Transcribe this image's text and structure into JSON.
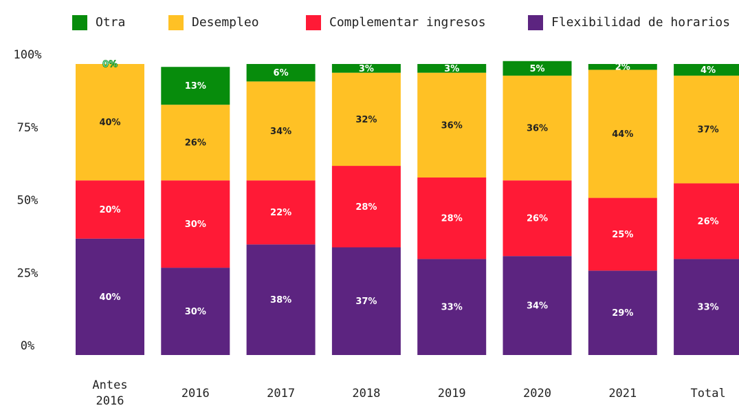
{
  "chart_data": {
    "type": "stacked_bar",
    "categories": [
      "Antes 2016",
      "2016",
      "2017",
      "2018",
      "2019",
      "2020",
      "2021",
      "Total"
    ],
    "series": [
      {
        "name": "Flexibilidad de horarios",
        "color": "#5c2480",
        "values": [
          40,
          30,
          38,
          37,
          33,
          34,
          29,
          33
        ],
        "value_labels": [
          "40%",
          "30%",
          "38%",
          "37%",
          "33%",
          "34%",
          "29%",
          "33%"
        ]
      },
      {
        "name": "Complementar ingresos",
        "color": "#ff1a36",
        "values": [
          20,
          30,
          22,
          28,
          28,
          26,
          25,
          26
        ],
        "value_labels": [
          "20%",
          "30%",
          "22%",
          "28%",
          "28%",
          "26%",
          "25%",
          "26%"
        ]
      },
      {
        "name": "Desempleo",
        "color": "#ffc125",
        "values": [
          40,
          26,
          34,
          32,
          36,
          36,
          44,
          37
        ],
        "value_labels": [
          "40%",
          "26%",
          "34%",
          "32%",
          "36%",
          "36%",
          "44%",
          "37%"
        ]
      },
      {
        "name": "Otra",
        "color": "#078c0c",
        "values": [
          0,
          13,
          6,
          3,
          3,
          5,
          2,
          4
        ],
        "value_labels": [
          "0%",
          "13%",
          "6%",
          "3%",
          "3%",
          "5%",
          "2%",
          "4%"
        ]
      }
    ],
    "legend_order": [
      3,
      2,
      1,
      0
    ],
    "ylim": [
      0,
      100
    ],
    "yticks": [
      {
        "value": 0,
        "label": "0%"
      },
      {
        "value": 25,
        "label": "25%"
      },
      {
        "value": 50,
        "label": "50%"
      },
      {
        "value": 75,
        "label": "75%"
      },
      {
        "value": 100,
        "label": "100%"
      }
    ],
    "grid": false
  }
}
